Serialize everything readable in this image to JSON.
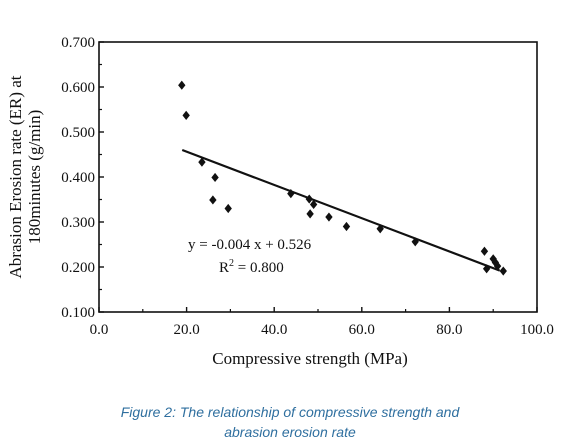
{
  "chart_data": {
    "type": "scatter",
    "xlabel": "Compressive strength (MPa)",
    "ylabel_line1": "Abrasion Erosion rate (ER) at",
    "ylabel_line2": "180minutes  (g/min)",
    "xlim": [
      0,
      100
    ],
    "ylim": [
      0.1,
      0.7
    ],
    "xticks": [
      "0.0",
      "20.0",
      "40.0",
      "60.0",
      "80.0",
      "100.0"
    ],
    "yticks": [
      "0.100",
      "0.200",
      "0.300",
      "0.400",
      "0.500",
      "0.600",
      "0.700"
    ],
    "grid": false,
    "points": [
      {
        "x": 18.9,
        "y": 0.604
      },
      {
        "x": 19.9,
        "y": 0.537
      },
      {
        "x": 23.5,
        "y": 0.433
      },
      {
        "x": 26.0,
        "y": 0.349
      },
      {
        "x": 26.5,
        "y": 0.399
      },
      {
        "x": 29.5,
        "y": 0.33
      },
      {
        "x": 43.8,
        "y": 0.363
      },
      {
        "x": 48.0,
        "y": 0.351
      },
      {
        "x": 48.2,
        "y": 0.318
      },
      {
        "x": 49.0,
        "y": 0.339
      },
      {
        "x": 52.5,
        "y": 0.311
      },
      {
        "x": 56.5,
        "y": 0.29
      },
      {
        "x": 64.2,
        "y": 0.285
      },
      {
        "x": 72.2,
        "y": 0.256
      },
      {
        "x": 88.0,
        "y": 0.235
      },
      {
        "x": 88.5,
        "y": 0.196
      },
      {
        "x": 90.0,
        "y": 0.218
      },
      {
        "x": 90.5,
        "y": 0.21
      },
      {
        "x": 91.0,
        "y": 0.202
      },
      {
        "x": 92.3,
        "y": 0.191
      }
    ],
    "trendline": {
      "x_start": 19.0,
      "y_start": 0.46,
      "x_end": 91.5,
      "y_end": 0.192
    },
    "annotations": {
      "equation": "y = -0.004 x + 0.526",
      "r2_prefix": "R",
      "r2_sup": "2",
      "r2_suffix": " = 0.800"
    }
  },
  "caption": {
    "line1": "Figure 2: The relationship of compressive strength and",
    "line2": "abrasion erosion rate"
  }
}
